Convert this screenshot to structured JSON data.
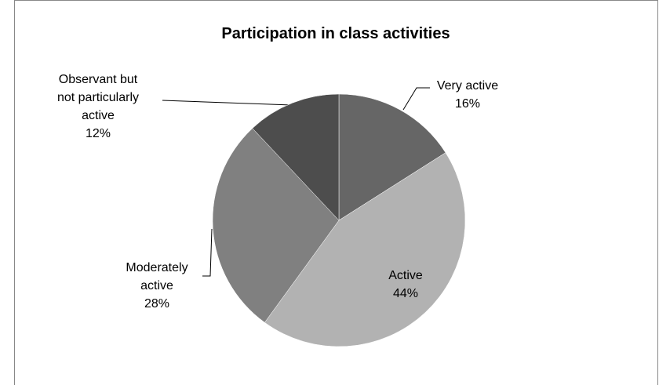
{
  "chart_data": {
    "type": "pie",
    "title": "Participation in class activities",
    "categories": [
      "Very active",
      "Active",
      "Moderately active",
      "Observant but not particularly active"
    ],
    "values": [
      16,
      44,
      28,
      12
    ],
    "value_labels": [
      "16%",
      "44%",
      "28%",
      "12%"
    ],
    "colors": [
      "#666666",
      "#b2b2b2",
      "#808080",
      "#4d4d4d"
    ]
  }
}
